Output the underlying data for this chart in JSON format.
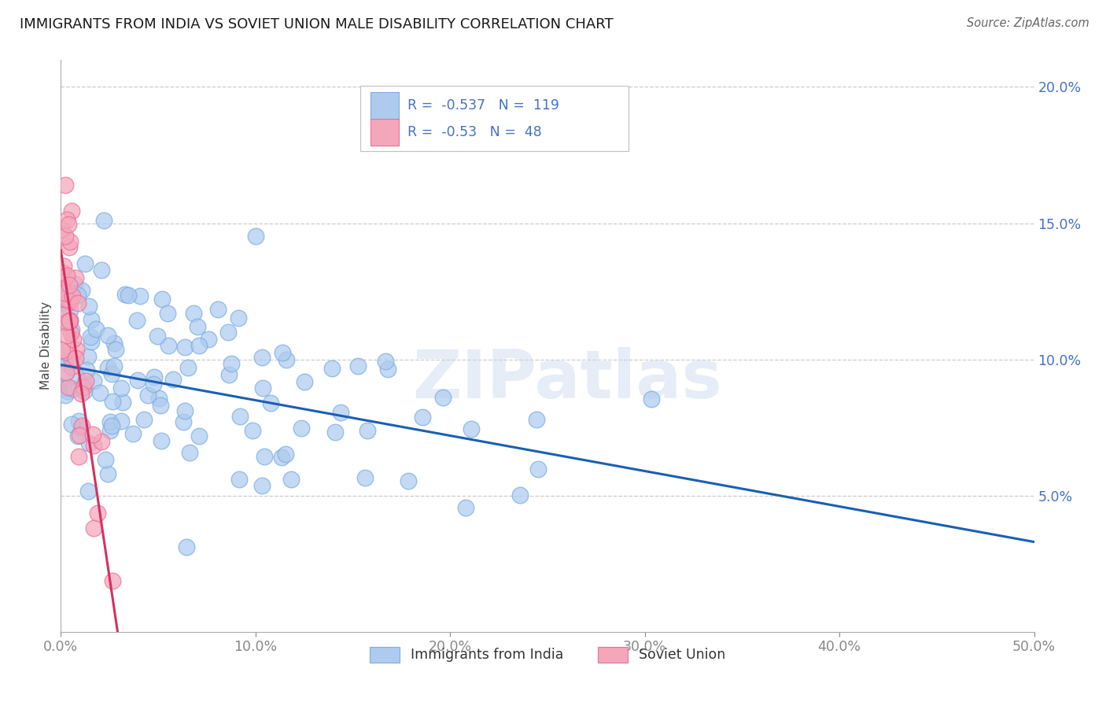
{
  "title": "IMMIGRANTS FROM INDIA VS SOVIET UNION MALE DISABILITY CORRELATION CHART",
  "source": "Source: ZipAtlas.com",
  "ylabel": "Male Disability",
  "xlim": [
    0.0,
    0.5
  ],
  "ylim": [
    0.0,
    0.21
  ],
  "ytick_vals": [
    0.05,
    0.1,
    0.15,
    0.2
  ],
  "ytick_labels": [
    "5.0%",
    "10.0%",
    "15.0%",
    "20.0%"
  ],
  "xtick_vals": [
    0.0,
    0.1,
    0.2,
    0.3,
    0.4,
    0.5
  ],
  "xtick_labels": [
    "0.0%",
    "10.0%",
    "20.0%",
    "30.0%",
    "40.0%",
    "50.0%"
  ],
  "india_R": -0.537,
  "india_N": 119,
  "soviet_R": -0.53,
  "soviet_N": 48,
  "india_color": "#aecbef",
  "india_edge_color": "#7aaee0",
  "india_line_color": "#1a5fb4",
  "soviet_color": "#f4a7bb",
  "soviet_edge_color": "#e87099",
  "soviet_line_color": "#d63060",
  "watermark": "ZIPatlas",
  "india_intercept": 0.098,
  "india_slope": -0.13,
  "soviet_intercept": 0.14,
  "soviet_slope": -4.8,
  "seed_india": 42,
  "seed_soviet": 7
}
